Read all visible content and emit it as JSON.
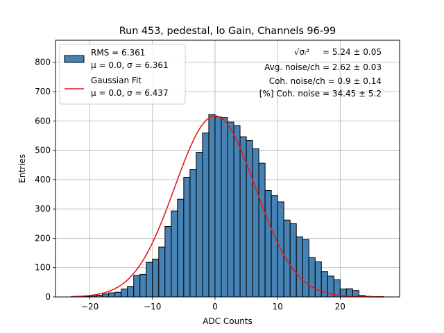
{
  "chart_data": {
    "type": "bar",
    "title": "Run 453, pedestal, lo Gain, Channels 96-99",
    "xlabel": "ADC Counts",
    "ylabel": "Entries",
    "xlim": [
      -25.5,
      29.5
    ],
    "ylim": [
      0,
      875
    ],
    "xticks": [
      -20,
      -10,
      0,
      10,
      20
    ],
    "xtick_labels": [
      "−20",
      "−10",
      "0",
      "10",
      "20"
    ],
    "yticks": [
      0,
      100,
      200,
      300,
      400,
      500,
      600,
      700,
      800
    ],
    "grid": true,
    "legend_position": "top-left",
    "bin_width": 1,
    "bins": [
      -23,
      -22,
      -21,
      -20,
      -19,
      -18,
      -17,
      -16,
      -15,
      -14,
      -13,
      -12,
      -11,
      -10,
      -9,
      -8,
      -7,
      -6,
      -5,
      -4,
      -3,
      -2,
      -1,
      0,
      1,
      2,
      3,
      4,
      5,
      6,
      7,
      8,
      9,
      10,
      11,
      12,
      13,
      14,
      15,
      16,
      17,
      18,
      19,
      20,
      21,
      22,
      23,
      24,
      25,
      26
    ],
    "values": [
      1,
      1,
      2,
      3,
      6,
      10,
      14,
      16,
      27,
      36,
      73,
      77,
      118,
      129,
      170,
      240,
      293,
      333,
      408,
      434,
      493,
      559,
      622,
      614,
      611,
      596,
      584,
      546,
      533,
      505,
      456,
      363,
      346,
      324,
      262,
      250,
      205,
      195,
      134,
      120,
      86,
      71,
      59,
      27,
      28,
      22,
      5,
      2,
      1,
      1
    ],
    "series": [
      {
        "name": "RMS = 6.361",
        "name_line2": "μ = 0.0, σ = 6.361",
        "type": "histogram",
        "color": "#4682b4",
        "edge_color": "#000000"
      },
      {
        "name": "Gaussian Fit",
        "name_line2": "μ = 0.0, σ = 6.437",
        "type": "line",
        "color": "#e31a1c",
        "mu": 0.0,
        "sigma": 6.437,
        "amplitude": 617,
        "x_range": [
          -23,
          27
        ]
      }
    ],
    "annotations": [
      {
        "formula": "√σᵢ²",
        "value": "= 5.24 ± 0.05"
      },
      {
        "text": "Avg. noise/ch = 2.62 ± 0.03"
      },
      {
        "text": "Coh. noise/ch = 0.9 ± 0.14"
      },
      {
        "text": "[%] Coh. noise = 34.45 ± 5.2"
      }
    ]
  }
}
